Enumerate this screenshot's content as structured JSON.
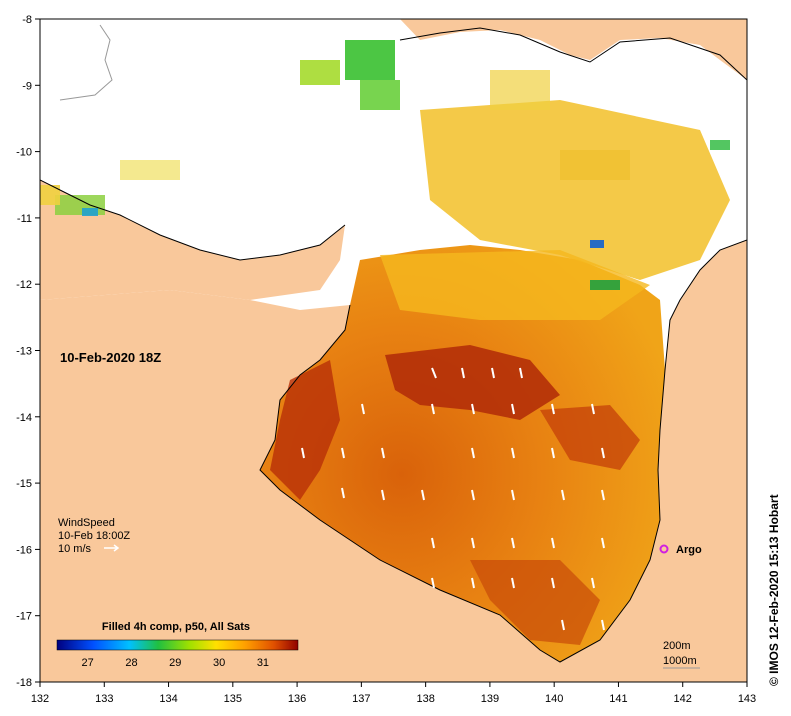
{
  "map": {
    "timestamp_label": "10-Feb-2020 18Z",
    "credit": "© IMOS 12-Feb-2020 15:13 Hobart",
    "x_ticks": [
      "132",
      "133",
      "134",
      "135",
      "136",
      "137",
      "138",
      "139",
      "140",
      "141",
      "142",
      "143"
    ],
    "y_ticks": [
      "-8",
      "-9",
      "-10",
      "-11",
      "-12",
      "-13",
      "-14",
      "-15",
      "-16",
      "-17",
      "-18"
    ],
    "wind_legend": {
      "title": "WindSpeed",
      "time": "10-Feb 18:00Z",
      "scale": "10 m/s"
    },
    "argo": {
      "label": "Argo",
      "color": "#d020e0"
    },
    "colorbar": {
      "title": "Filled 4h comp, p50, All Sats",
      "ticks": [
        "27",
        "28",
        "29",
        "30",
        "31"
      ],
      "range": [
        26.3,
        31.8
      ]
    },
    "contours": {
      "depth1": "200m",
      "depth2": "1000m"
    },
    "colors": {
      "land": "#f9c89b",
      "sea_hot": "#c83a0a",
      "sea_warm": "#ec8b10",
      "sea_mild": "#f5b520"
    }
  }
}
